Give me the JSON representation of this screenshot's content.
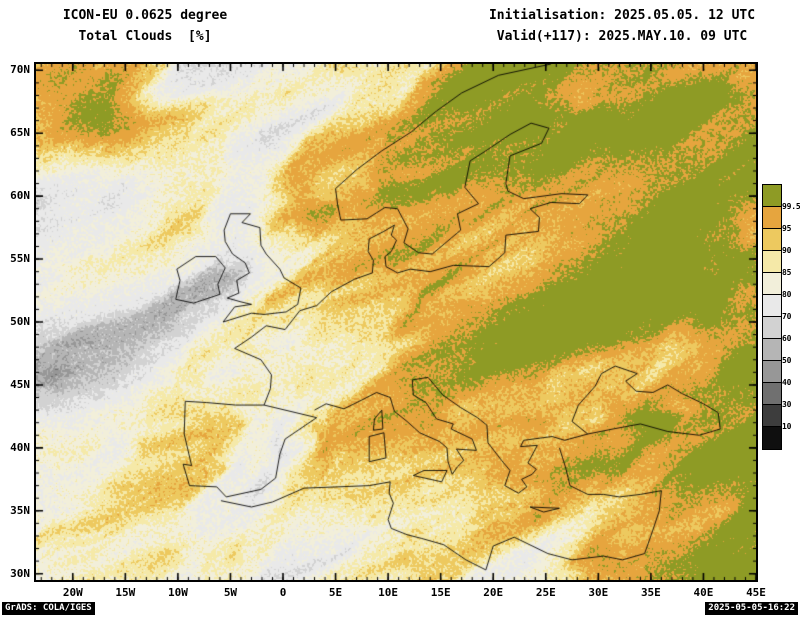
{
  "header": {
    "model_line": "ICON-EU 0.0625 degree",
    "variable_line": "Total Clouds  [%]",
    "init_line": "Initialisation: 2025.05.05. 12 UTC",
    "valid_line": "Valid(+117): 2025.MAY.10. 09 UTC"
  },
  "axes": {
    "lat_ticks": [
      "70N",
      "65N",
      "60N",
      "55N",
      "50N",
      "45N",
      "40N",
      "35N",
      "30N"
    ],
    "lon_ticks": [
      "20W",
      "15W",
      "10W",
      "5W",
      "0",
      "5E",
      "10E",
      "15E",
      "20E",
      "25E",
      "30E",
      "35E",
      "40E",
      "45E"
    ]
  },
  "colorbar": {
    "unit": "%",
    "labels": [
      "99.5",
      "95",
      "90",
      "85",
      "80",
      "70",
      "60",
      "50",
      "40",
      "30",
      "10"
    ],
    "levels": [
      99.5,
      95,
      90,
      85,
      80,
      70,
      60,
      50,
      40,
      30,
      10
    ],
    "colors_top_to_bottom": [
      "#8e9b25",
      "#e6a53e",
      "#edc95f",
      "#f5e9a8",
      "#f2efda",
      "#e9e9e9",
      "#d2d2d2",
      "#b5b5b5",
      "#979797",
      "#707070",
      "#3d3d3d",
      "#0f0f0f"
    ]
  },
  "footer": {
    "credit": "GrADS: COLA/IGES",
    "timestamp": "2025-05-05-16:22"
  }
}
